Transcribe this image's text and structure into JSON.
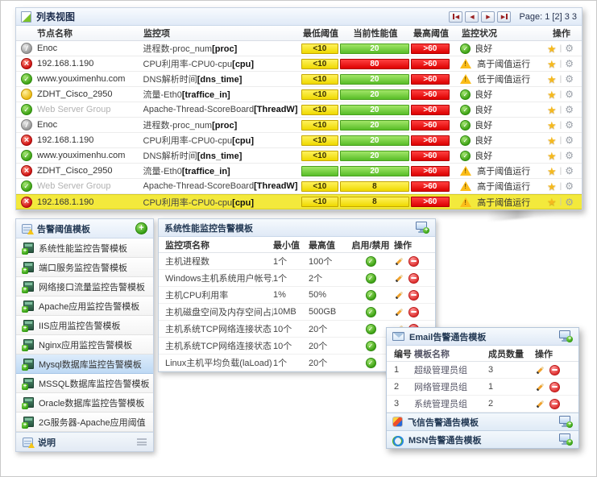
{
  "colors": {
    "bar_min_yellow": "#f0da00",
    "bar_ok_green": "#5bbf2a",
    "bar_alert_red": "#dc0000",
    "row_highlight": "#f3e93c",
    "panel_header_blue": "#e0eaf7",
    "warn_triangle": "#fcbd19"
  },
  "icons": {
    "list_view": "page-with-green-fold",
    "favorite": "gold-star",
    "settings": "gray-gear",
    "edit": "pencil",
    "delete": "red-minus-circle",
    "add": "green-plus-circle",
    "add_template": "screen-with-green-plus",
    "email": "envelope",
    "fetion": "color-square",
    "msn": "green-blue-rings",
    "status_ok": "green-check-circle",
    "status_error": "red-cross-circle",
    "status_disabled": "gray-slash-circle",
    "status_paused": "yellow-circle",
    "warning": "yellow-triangle-exclamation"
  },
  "list_panel": {
    "title": "列表视图",
    "pagination": {
      "label": "Page: 1 [2] 3  3"
    },
    "columns": {
      "node": "节点名称",
      "item": "监控项",
      "min": "最低阈值",
      "cur": "当前性能值",
      "max": "最高阈值",
      "state": "监控状况",
      "ops": "操作"
    },
    "rows": [
      {
        "node": "Enoc",
        "node_status": "disabled",
        "node_muted": false,
        "item": "进程数-proc_num",
        "key": "proc",
        "min": "<10",
        "min_color": "yellow",
        "cur": "20",
        "cur_color": "green",
        "max": ">60",
        "state": "good",
        "state_text": "良好",
        "highlighted": false
      },
      {
        "node": "192.168.1.190",
        "node_status": "error",
        "node_muted": false,
        "item": "CPU利用率-CPU0-cpu",
        "key": "cpu",
        "min": "<10",
        "min_color": "yellow",
        "cur": "80",
        "cur_color": "red",
        "max": ">60",
        "state": "warn",
        "state_text": "高于阈值运行",
        "highlighted": false
      },
      {
        "node": "www.youximenhu.com",
        "node_status": "ok",
        "node_muted": false,
        "item": "DNS解析时间",
        "key": "dns_time",
        "min": "<10",
        "min_color": "yellow",
        "cur": "20",
        "cur_color": "green",
        "max": ">60",
        "state": "warn",
        "state_text": "低于阈值运行",
        "highlighted": false
      },
      {
        "node": "ZDHT_Cisco_2950",
        "node_status": "paused",
        "node_muted": false,
        "item": "流量-Eth0",
        "key": "traffice_in",
        "min": "<10",
        "min_color": "yellow",
        "cur": "20",
        "cur_color": "green",
        "max": ">60",
        "state": "good",
        "state_text": "良好",
        "highlighted": false
      },
      {
        "node": "Web Server Group",
        "node_status": "ok",
        "node_muted": true,
        "item": "Apache-Thread-ScoreBoard",
        "key": "ThreadW",
        "min": "<10",
        "min_color": "yellow",
        "cur": "20",
        "cur_color": "green",
        "max": ">60",
        "state": "good",
        "state_text": "良好",
        "highlighted": false
      },
      {
        "node": "Enoc",
        "node_status": "disabled",
        "node_muted": false,
        "item": "进程数-proc_num",
        "key": "proc",
        "min": "<10",
        "min_color": "yellow",
        "cur": "20",
        "cur_color": "green",
        "max": ">60",
        "state": "good",
        "state_text": "良好",
        "highlighted": false
      },
      {
        "node": "192.168.1.190",
        "node_status": "error",
        "node_muted": false,
        "item": "CPU利用率-CPU0-cpu",
        "key": "cpu",
        "min": "<10",
        "min_color": "yellow",
        "cur": "20",
        "cur_color": "green",
        "max": ">60",
        "state": "good",
        "state_text": "良好",
        "highlighted": false
      },
      {
        "node": "www.youximenhu.com",
        "node_status": "ok",
        "node_muted": false,
        "item": "DNS解析时间",
        "key": "dns_time",
        "min": "<10",
        "min_color": "yellow",
        "cur": "20",
        "cur_color": "green",
        "max": ">60",
        "state": "good",
        "state_text": "良好",
        "highlighted": false
      },
      {
        "node": "ZDHT_Cisco_2950",
        "node_status": "error",
        "node_muted": false,
        "item": "流量-Eth0",
        "key": "traffice_in",
        "min": "",
        "min_color": "green",
        "cur": "20",
        "cur_color": "green",
        "max": ">60",
        "state": "warn",
        "state_text": "高于阈值运行",
        "highlighted": false
      },
      {
        "node": "Web Server Group",
        "node_status": "ok",
        "node_muted": true,
        "item": "Apache-Thread-ScoreBoard",
        "key": "ThreadW",
        "min": "<10",
        "min_color": "yellow",
        "cur": "8",
        "cur_color": "yellow",
        "max": ">60",
        "state": "warn",
        "state_text": "高于阈值运行",
        "highlighted": false
      },
      {
        "node": "192.168.1.190",
        "node_status": "error",
        "node_muted": false,
        "item": "CPU利用率-CPU0-cpu",
        "key": "cpu",
        "min": "<10",
        "min_color": "yellow",
        "cur": "8",
        "cur_color": "yellow",
        "max": ">60",
        "state": "warn",
        "state_text": "高于阈值运行",
        "highlighted": true
      }
    ]
  },
  "templates_panel": {
    "title": "告警阈值模板",
    "items": [
      {
        "label": "系统性能监控告警模板",
        "selected": false
      },
      {
        "label": "端口服务监控告警模板",
        "selected": false
      },
      {
        "label": "网络接口流量监控告警模板",
        "selected": false
      },
      {
        "label": "Apache应用监控告警模板",
        "selected": false
      },
      {
        "label": "IIS应用监控告警模板",
        "selected": false
      },
      {
        "label": "Nginx应用监控告警模板",
        "selected": false
      },
      {
        "label": "Mysql数据库监控告警模板",
        "selected": true
      },
      {
        "label": "MSSQL数据库监控告警模板",
        "selected": false
      },
      {
        "label": "Oracle数据库监控告警模板",
        "selected": false
      },
      {
        "label": "2G服务器-Apache应用阈值",
        "selected": false
      }
    ],
    "footer": "说明"
  },
  "perf_panel": {
    "title": "系统性能监控告警模板",
    "columns": {
      "name": "监控项名称",
      "min": "最小值",
      "max": "最高值",
      "enable": "启用/禁用",
      "ops": "操作"
    },
    "rows": [
      {
        "name": "主机进程数",
        "min": "1个",
        "max": "100个"
      },
      {
        "name": "Windows主机系统用户帐号总数",
        "min": "1个",
        "max": "2个"
      },
      {
        "name": "主机CPU利用率",
        "min": "1%",
        "max": "50%"
      },
      {
        "name": "主机磁盘空间及内存空间占用",
        "min": "10MB",
        "max": "500GB"
      },
      {
        "name": "主机系统TCP网络连接状态",
        "min": "10个",
        "max": "20个"
      },
      {
        "name": "主机系统TCP网络连接状态",
        "min": "10个",
        "max": "20个"
      },
      {
        "name": "Linux主机平均负载(laLoad)",
        "min": "1个",
        "max": "20个"
      }
    ]
  },
  "email_panel": {
    "title": "Email告警通告模板",
    "columns": {
      "no": "编号",
      "name": "模板名称",
      "count": "成员数量",
      "ops": "操作"
    },
    "rows": [
      {
        "no": "1",
        "name": "超级管理员组",
        "count": "3"
      },
      {
        "no": "2",
        "name": "网络管理员组",
        "count": "1"
      },
      {
        "no": "3",
        "name": "系统管理员组",
        "count": "2"
      }
    ]
  },
  "other_panels": [
    {
      "title": "飞信告警通告模板"
    },
    {
      "title": "MSN告警通告模板"
    }
  ]
}
